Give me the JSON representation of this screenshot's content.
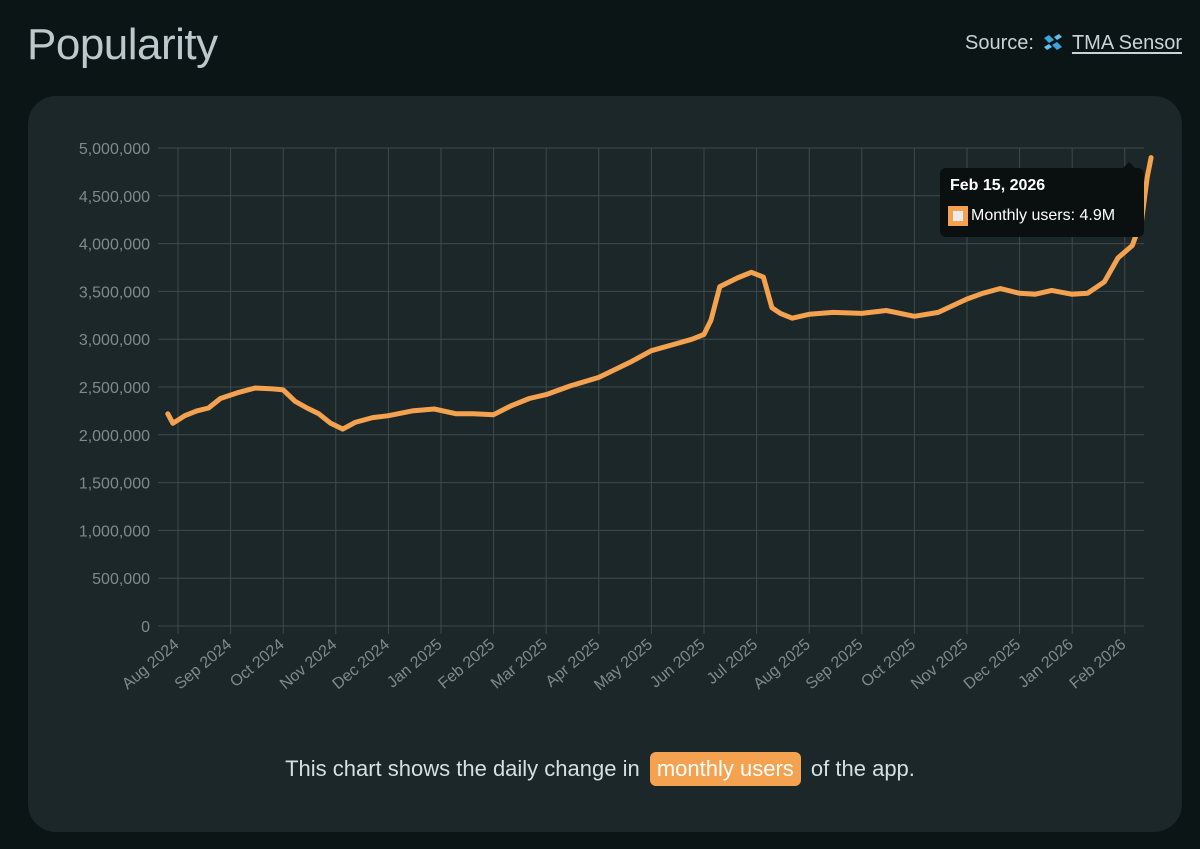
{
  "header": {
    "title": "Popularity",
    "source_prefix": "Source:",
    "source_link": "TMA Sensor"
  },
  "tooltip": {
    "date": "Feb 15, 2026",
    "label": "Monthly users: 4.9M"
  },
  "caption": {
    "before": "This chart shows the daily change in",
    "highlight": "monthly users",
    "after": "of the app."
  },
  "colors": {
    "line": "#f4a24f",
    "grid": "#3e4a4c",
    "card": "#1b2729",
    "background": "#0b1516"
  },
  "chart_data": {
    "type": "line",
    "title": "",
    "xlabel": "",
    "ylabel": "",
    "ylim": [
      0,
      5000000
    ],
    "y_ticks": [
      "0",
      "500,000",
      "1,000,000",
      "1,500,000",
      "2,000,000",
      "2,500,000",
      "3,000,000",
      "3,500,000",
      "4,000,000",
      "4,500,000",
      "5,000,000"
    ],
    "x_ticks": [
      "Aug 2024",
      "Sep 2024",
      "Oct 2024",
      "Nov 2024",
      "Dec 2024",
      "Jan 2025",
      "Feb 2025",
      "Mar 2025",
      "Apr 2025",
      "May 2025",
      "Jun 2025",
      "Jul 2025",
      "Aug 2025",
      "Sep 2025",
      "Oct 2025",
      "Nov 2025",
      "Dec 2025",
      "Jan 2026",
      "Feb 2026"
    ],
    "grid": true,
    "legend": "none",
    "series": [
      {
        "name": "Monthly users",
        "x": [
          "2024-07-26",
          "2024-07-29",
          "2024-08-05",
          "2024-08-12",
          "2024-08-19",
          "2024-08-26",
          "2024-09-05",
          "2024-09-15",
          "2024-09-25",
          "2024-10-01",
          "2024-10-08",
          "2024-10-15",
          "2024-10-22",
          "2024-10-29",
          "2024-11-05",
          "2024-11-12",
          "2024-11-22",
          "2024-12-01",
          "2024-12-15",
          "2024-12-28",
          "2025-01-10",
          "2025-01-20",
          "2025-02-01",
          "2025-02-10",
          "2025-02-20",
          "2025-03-01",
          "2025-03-15",
          "2025-04-01",
          "2025-04-10",
          "2025-04-20",
          "2025-05-01",
          "2025-05-15",
          "2025-05-25",
          "2025-06-01",
          "2025-06-05",
          "2025-06-10",
          "2025-06-20",
          "2025-06-28",
          "2025-07-05",
          "2025-07-10",
          "2025-07-15",
          "2025-07-22",
          "2025-08-01",
          "2025-08-15",
          "2025-09-01",
          "2025-09-15",
          "2025-10-01",
          "2025-10-15",
          "2025-11-01",
          "2025-11-10",
          "2025-11-20",
          "2025-12-01",
          "2025-12-10",
          "2025-12-20",
          "2026-01-01",
          "2026-01-10",
          "2026-01-20",
          "2026-01-28",
          "2026-02-05",
          "2026-02-10",
          "2026-02-13",
          "2026-02-15"
        ],
        "y": [
          2220000,
          2120000,
          2200000,
          2250000,
          2280000,
          2380000,
          2440000,
          2490000,
          2480000,
          2470000,
          2350000,
          2280000,
          2220000,
          2120000,
          2060000,
          2130000,
          2180000,
          2200000,
          2250000,
          2270000,
          2220000,
          2220000,
          2210000,
          2300000,
          2380000,
          2420000,
          2510000,
          2600000,
          2680000,
          2770000,
          2880000,
          2950000,
          3000000,
          3050000,
          3200000,
          3550000,
          3640000,
          3700000,
          3650000,
          3330000,
          3270000,
          3220000,
          3260000,
          3280000,
          3270000,
          3300000,
          3240000,
          3280000,
          3420000,
          3480000,
          3530000,
          3480000,
          3470000,
          3510000,
          3470000,
          3480000,
          3600000,
          3850000,
          3980000,
          4250000,
          4700000,
          4900000
        ]
      }
    ]
  }
}
